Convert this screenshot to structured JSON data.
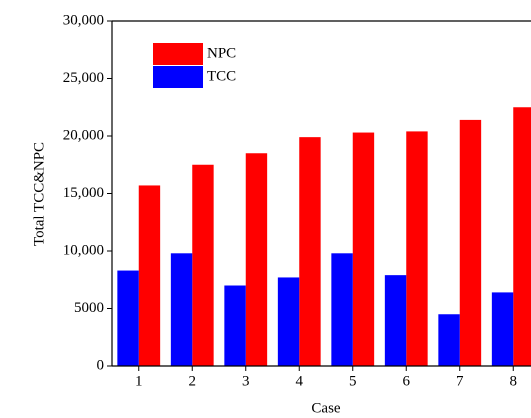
{
  "chart_data": {
    "type": "bar",
    "x_label": "Case",
    "y_label": "Total TCC&NPC",
    "categories": [
      "1",
      "2",
      "3",
      "4",
      "5",
      "6",
      "7",
      "8"
    ],
    "series": [
      {
        "name": "NPC",
        "color": "#ff0000",
        "values": [
          15700,
          17500,
          18500,
          19900,
          20300,
          20400,
          21400,
          22500
        ]
      },
      {
        "name": "TCC",
        "color": "#0000ff",
        "values": [
          8300,
          9800,
          7000,
          7700,
          9800,
          7900,
          4500,
          6400
        ]
      }
    ],
    "ylim": [
      0,
      30000
    ],
    "yticks": [
      0,
      5000,
      {
        "value": 10000,
        "label": "10,000"
      },
      {
        "value": 15000,
        "label": "15,000"
      },
      {
        "value": 20000,
        "label": "20,000"
      },
      {
        "value": 25000,
        "label": "25,000"
      },
      {
        "value": 30000,
        "label": "30,000"
      }
    ],
    "legend": "upper-left",
    "grid": false
  }
}
